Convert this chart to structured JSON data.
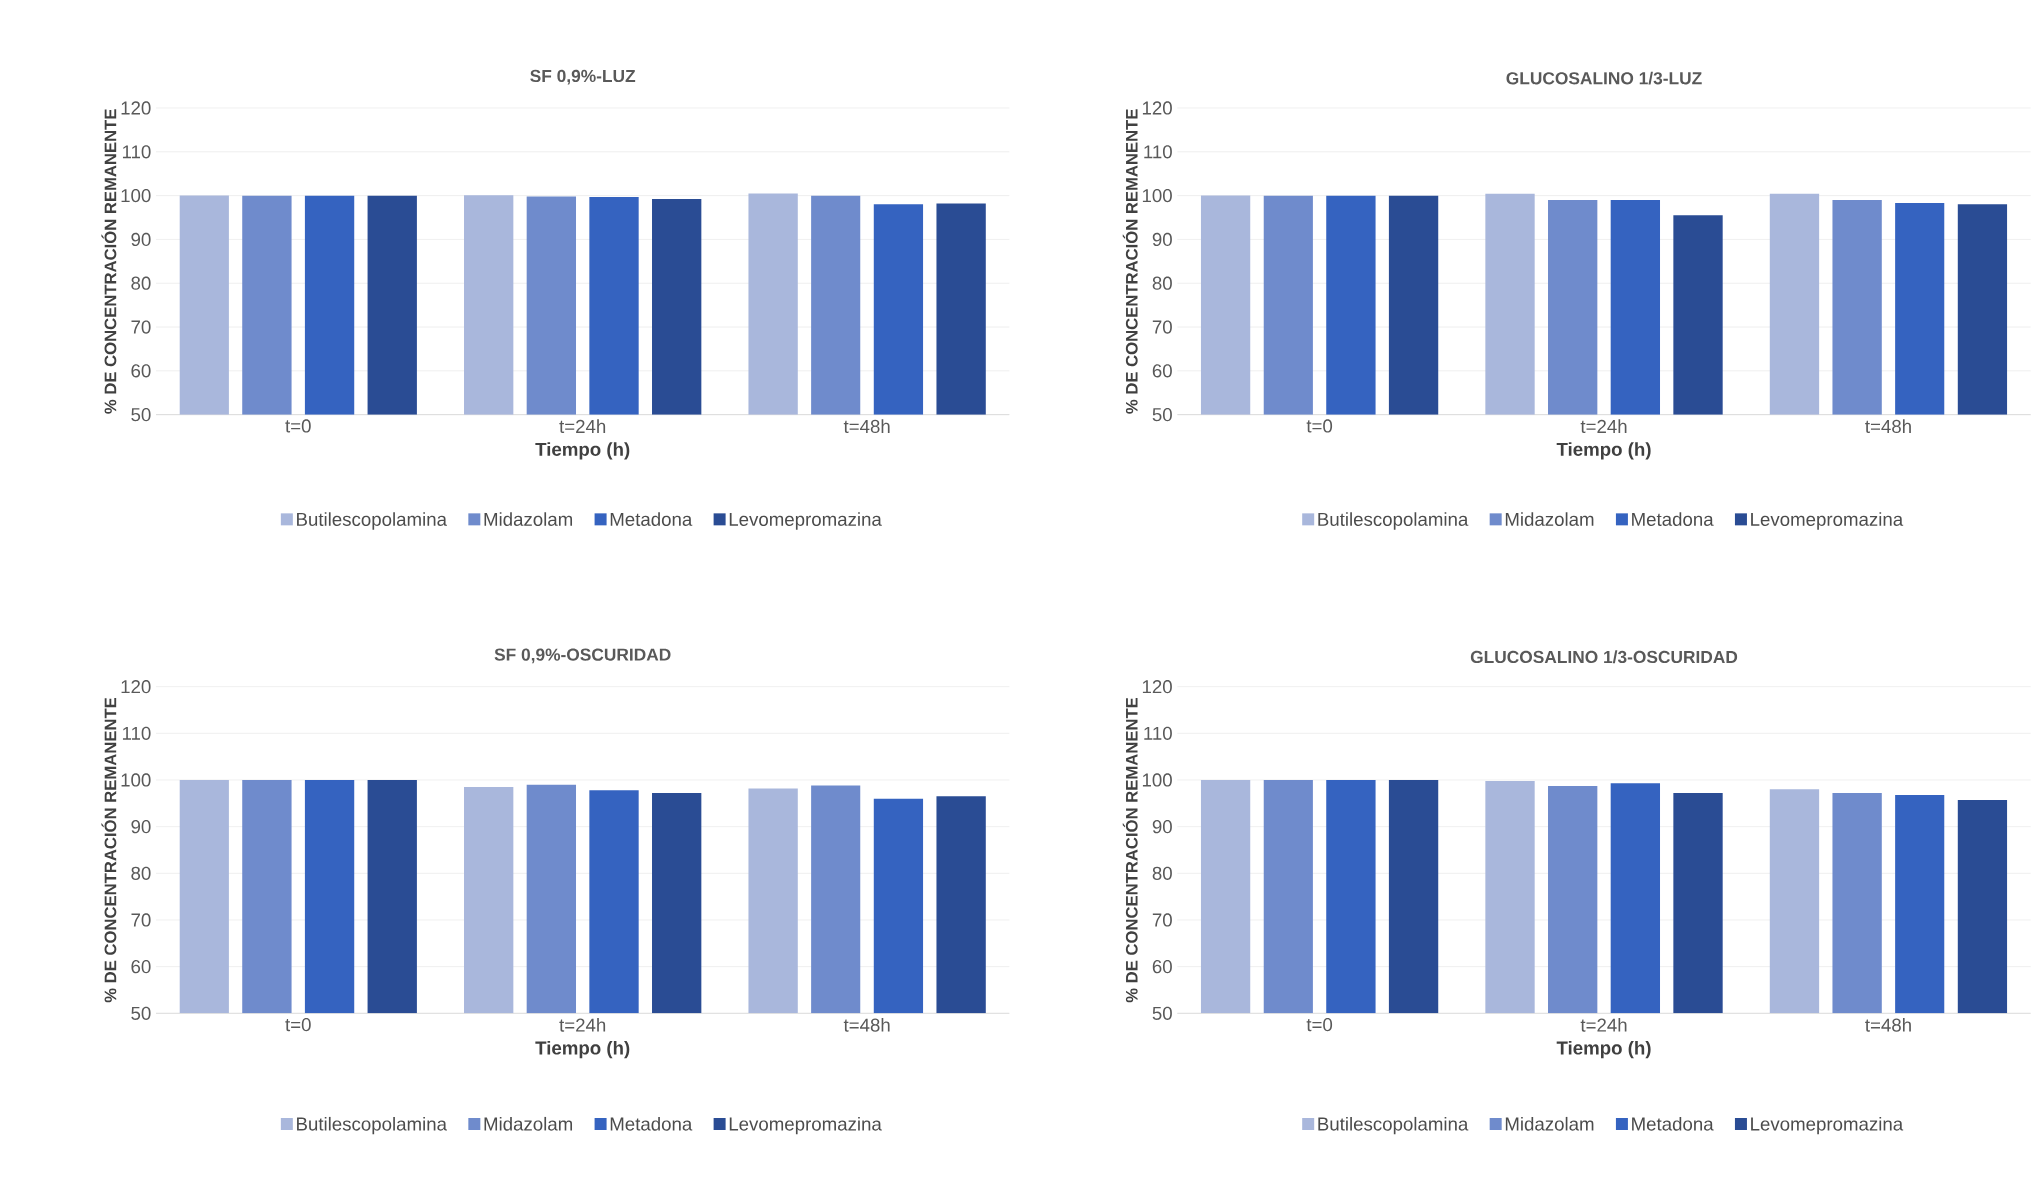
{
  "chart_data": [
    {
      "type": "bar",
      "title": "SF 0,9%-LUZ",
      "xlabel": "Tiempo (h)",
      "ylabel": "% DE CONCENTRACIÓN REMANENTE",
      "categories": [
        "t=0",
        "t=24h",
        "t=48h"
      ],
      "ylim": [
        50,
        120
      ],
      "yticks": [
        50,
        60,
        70,
        80,
        90,
        100,
        110,
        120
      ],
      "grid": "y",
      "legend": "bottom",
      "series": [
        {
          "name": "Butilescopolamina",
          "color": "#a9b7dc",
          "values": [
            100,
            100.1,
            100.5
          ]
        },
        {
          "name": "Midazolam",
          "color": "#6f8bcc",
          "values": [
            100,
            99.8,
            100
          ]
        },
        {
          "name": "Metadona",
          "color": "#3563c0",
          "values": [
            100,
            99.7,
            98
          ]
        },
        {
          "name": "Levomepromazina",
          "color": "#2a4c94",
          "values": [
            100,
            99.2,
            98.2
          ]
        }
      ]
    },
    {
      "type": "bar",
      "title": "GLUCOSALINO 1/3-LUZ",
      "xlabel": "Tiempo (h)",
      "ylabel": "% DE CONCENTRACIÓN REMANENTE",
      "categories": [
        "t=0",
        "t=24h",
        "t=48h"
      ],
      "ylim": [
        50,
        120
      ],
      "yticks": [
        50,
        60,
        70,
        80,
        90,
        100,
        110,
        120
      ],
      "grid": "y",
      "legend": "bottom",
      "series": [
        {
          "name": "Butilescopolamina",
          "color": "#a9b7dc",
          "values": [
            100,
            100.4,
            100.4
          ]
        },
        {
          "name": "Midazolam",
          "color": "#6f8bcc",
          "values": [
            100,
            99,
            99
          ]
        },
        {
          "name": "Metadona",
          "color": "#3563c0",
          "values": [
            100,
            99,
            98.3
          ]
        },
        {
          "name": "Levomepromazina",
          "color": "#2a4c94",
          "values": [
            100,
            95.5,
            98
          ]
        }
      ]
    },
    {
      "type": "bar",
      "title": "SF 0,9%-OSCURIDAD",
      "xlabel": "Tiempo (h)",
      "ylabel": "% DE CONCENTRACIÓN REMANENTE",
      "categories": [
        "t=0",
        "t=24h",
        "t=48h"
      ],
      "ylim": [
        50,
        120
      ],
      "yticks": [
        50,
        60,
        70,
        80,
        90,
        100,
        110,
        120
      ],
      "grid": "y",
      "legend": "bottom",
      "series": [
        {
          "name": "Butilescopolamina",
          "color": "#a9b7dc",
          "values": [
            100,
            98.5,
            98.2
          ]
        },
        {
          "name": "Midazolam",
          "color": "#6f8bcc",
          "values": [
            100,
            99,
            98.8
          ]
        },
        {
          "name": "Metadona",
          "color": "#3563c0",
          "values": [
            100,
            97.8,
            96
          ]
        },
        {
          "name": "Levomepromazina",
          "color": "#2a4c94",
          "values": [
            100,
            97.2,
            96.5
          ]
        }
      ]
    },
    {
      "type": "bar",
      "title": "GLUCOSALINO 1/3-OSCURIDAD",
      "xlabel": "Tiempo (h)",
      "ylabel": "% DE CONCENTRACIÓN REMANENTE",
      "categories": [
        "t=0",
        "t=24h",
        "t=48h"
      ],
      "ylim": [
        50,
        120
      ],
      "yticks": [
        50,
        60,
        70,
        80,
        90,
        100,
        110,
        120
      ],
      "grid": "y",
      "legend": "bottom",
      "series": [
        {
          "name": "Butilescopolamina",
          "color": "#a9b7dc",
          "values": [
            100,
            99.8,
            98
          ]
        },
        {
          "name": "Midazolam",
          "color": "#6f8bcc",
          "values": [
            100,
            98.7,
            97.2
          ]
        },
        {
          "name": "Metadona",
          "color": "#3563c0",
          "values": [
            100,
            99.3,
            96.8
          ]
        },
        {
          "name": "Levomepromazina",
          "color": "#2a4c94",
          "values": [
            100,
            97.2,
            95.7
          ]
        }
      ]
    }
  ]
}
